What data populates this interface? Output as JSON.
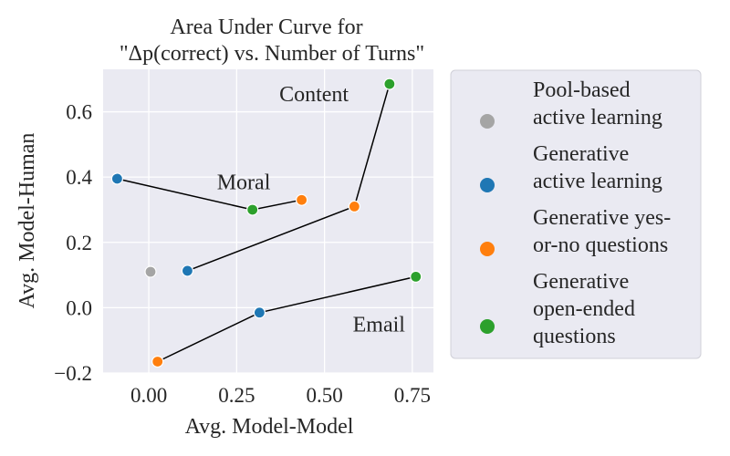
{
  "chart_data": {
    "type": "scatter",
    "title": [
      "Area Under Curve for",
      "\"Δp(correct) vs. Number of Turns\""
    ],
    "xlabel": "Avg. Model-Model",
    "ylabel": "Avg. Model-Human",
    "xlim": [
      -0.13,
      0.81
    ],
    "ylim": [
      -0.2,
      0.73
    ],
    "xticks": [
      0.0,
      0.25,
      0.5,
      0.75
    ],
    "xtick_labels": [
      "0.00",
      "0.25",
      "0.50",
      "0.75"
    ],
    "yticks": [
      -0.2,
      0.0,
      0.2,
      0.4,
      0.6
    ],
    "ytick_labels": [
      "−0.2",
      "0.0",
      "0.2",
      "0.4",
      "0.6"
    ],
    "grid": true,
    "background": "#eaeaf2",
    "series": [
      {
        "name": "Pool-based active learning",
        "label_lines": [
          "Pool-based",
          "active learning"
        ],
        "color": "#a5a5a5"
      },
      {
        "name": "Generative active learning",
        "label_lines": [
          "Generative",
          "active learning"
        ],
        "color": "#1f77b4"
      },
      {
        "name": "Generative yes-or-no questions",
        "label_lines": [
          "Generative yes-",
          "or-no questions"
        ],
        "color": "#ff7f0e"
      },
      {
        "name": "Generative open-ended questions",
        "label_lines": [
          "Generative",
          "open-ended",
          "questions"
        ],
        "color": "#2ca02c"
      }
    ],
    "points": [
      {
        "group": "Content",
        "series": 0,
        "x": 0.005,
        "y": 0.11
      },
      {
        "group": "Content",
        "series": 1,
        "x": 0.11,
        "y": 0.113
      },
      {
        "group": "Content",
        "series": 2,
        "x": 0.585,
        "y": 0.31
      },
      {
        "group": "Content",
        "series": 3,
        "x": 0.685,
        "y": 0.685
      },
      {
        "group": "Moral",
        "series": 1,
        "x": -0.09,
        "y": 0.395
      },
      {
        "group": "Moral",
        "series": 3,
        "x": 0.295,
        "y": 0.3
      },
      {
        "group": "Moral",
        "series": 2,
        "x": 0.435,
        "y": 0.33
      },
      {
        "group": "Email",
        "series": 2,
        "x": 0.025,
        "y": -0.165
      },
      {
        "group": "Email",
        "series": 1,
        "x": 0.315,
        "y": -0.015
      },
      {
        "group": "Email",
        "series": 3,
        "x": 0.76,
        "y": 0.095
      }
    ],
    "lines": [
      {
        "group": "Content",
        "path": [
          [
            0.11,
            0.113
          ],
          [
            0.585,
            0.31
          ],
          [
            0.685,
            0.685
          ]
        ]
      },
      {
        "group": "Moral",
        "path": [
          [
            -0.09,
            0.395
          ],
          [
            0.295,
            0.3
          ],
          [
            0.435,
            0.33
          ]
        ]
      },
      {
        "group": "Email",
        "path": [
          [
            0.025,
            -0.165
          ],
          [
            0.315,
            -0.015
          ],
          [
            0.76,
            0.095
          ]
        ]
      }
    ],
    "annotations": [
      {
        "text": "Content",
        "x": 0.47,
        "y": 0.655
      },
      {
        "text": "Moral",
        "x": 0.27,
        "y": 0.385
      },
      {
        "text": "Email",
        "x": 0.655,
        "y": -0.05
      }
    ]
  }
}
